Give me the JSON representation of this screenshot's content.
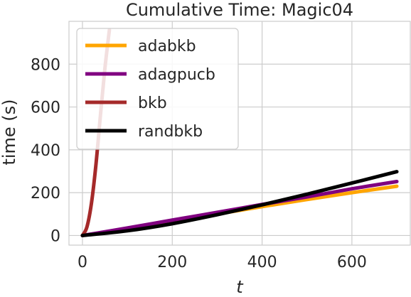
{
  "chart_data": {
    "type": "line",
    "title": "Cumulative Time: Magic04",
    "xlabel": "t",
    "ylabel": "time (s)",
    "xlim": [
      -30,
      730
    ],
    "ylim": [
      -45,
      1000
    ],
    "xticks": [
      0,
      200,
      400,
      600
    ],
    "yticks": [
      0,
      200,
      400,
      600,
      800
    ],
    "grid": true,
    "legend_position": "top-left",
    "series": [
      {
        "name": "adabkb",
        "color": "#FFA500",
        "x": [
          0,
          100,
          200,
          300,
          400,
          500,
          600,
          700
        ],
        "y": [
          0,
          32,
          65,
          100,
          135,
          168,
          200,
          230
        ]
      },
      {
        "name": "adagpucb",
        "color": "#800080",
        "x": [
          0,
          100,
          200,
          300,
          400,
          500,
          600,
          700
        ],
        "y": [
          0,
          35,
          72,
          108,
          145,
          180,
          218,
          252
        ]
      },
      {
        "name": "bkb",
        "color": "#A52A2A",
        "x": [
          0,
          10,
          20,
          30,
          40,
          50,
          60
        ],
        "y": [
          0,
          40,
          150,
          330,
          560,
          780,
          960
        ]
      },
      {
        "name": "randbkb",
        "color": "#000000",
        "x": [
          0,
          100,
          200,
          300,
          400,
          500,
          600,
          700
        ],
        "y": [
          0,
          22,
          55,
          97,
          143,
          193,
          245,
          298
        ]
      }
    ]
  }
}
